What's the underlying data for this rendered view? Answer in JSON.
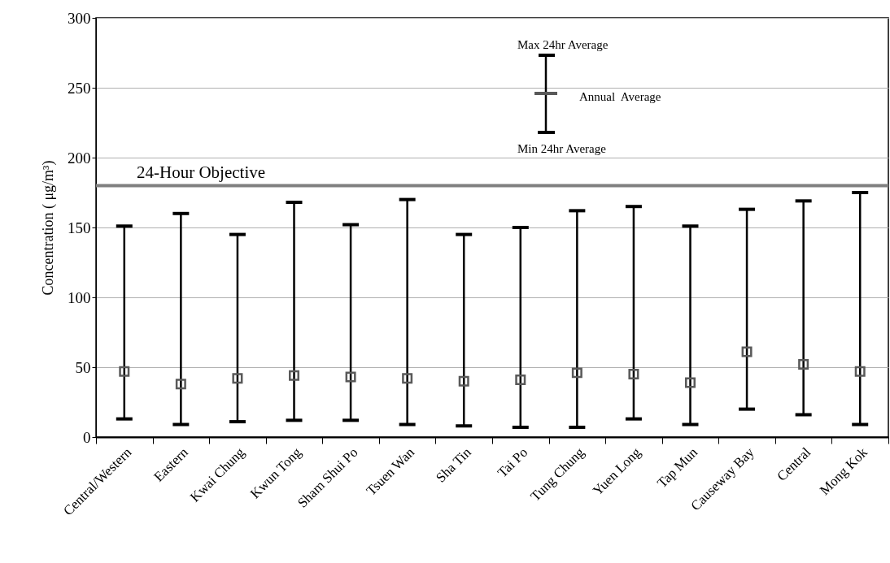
{
  "chart_data": {
    "type": "scatter",
    "ylabel": "Concentration ( μg/m³)",
    "categories": [
      "Central/Western",
      "Eastern",
      "Kwai Chung",
      "Kwun Tong",
      "Sham Shui Po",
      "Tsuen Wan",
      "Sha Tin",
      "Tai Po",
      "Tung Chung",
      "Yuen Long",
      "Tap Mun",
      "Causeway Bay",
      "Central",
      "Mong Kok"
    ],
    "values": [
      47,
      38,
      42,
      44,
      43,
      42,
      40,
      41,
      46,
      45,
      39,
      61,
      52,
      47
    ],
    "errors": [
      [
        13,
        151
      ],
      [
        9,
        160
      ],
      [
        11,
        145
      ],
      [
        12,
        168
      ],
      [
        12,
        152
      ],
      [
        9,
        170
      ],
      [
        8,
        145
      ],
      [
        7,
        150
      ],
      [
        7,
        162
      ],
      [
        13,
        165
      ],
      [
        9,
        151
      ],
      [
        20,
        163
      ],
      [
        16,
        169
      ],
      [
        9,
        175
      ]
    ],
    "color": "#595959",
    "marker": "square",
    "ylim": [
      0,
      300
    ],
    "yticks": [
      0,
      50,
      100,
      150,
      200,
      250,
      300
    ],
    "grid": "y",
    "ref_lines": [
      {
        "axis": "y",
        "value": 180,
        "label": "24-Hour Objective",
        "color": "#808080"
      }
    ],
    "annotations": [
      "Max 24hr Average",
      "Annual  Average",
      "Min 24hr Average"
    ]
  }
}
